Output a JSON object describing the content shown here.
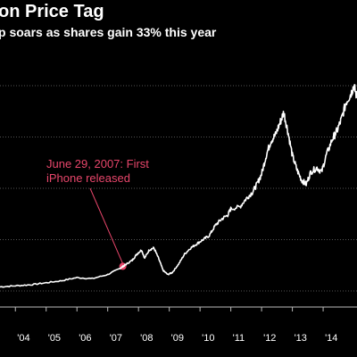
{
  "header": {
    "title": "on Price Tag",
    "subtitle": "p soars as shares gain 33% this year"
  },
  "colors": {
    "background": "#000000",
    "line": "#ffffff",
    "annotation": "#e8466b",
    "grid": "#555555"
  },
  "chart_data": {
    "type": "line",
    "title": "on Price Tag",
    "subtitle": "p soars as shares gain 33% this year",
    "xlabel": "",
    "ylabel": "",
    "grid": "horizontal dotted",
    "x_ticks": [
      "'04",
      "'05",
      "'06",
      "'07",
      "'08",
      "'09",
      "'10",
      "'11",
      "'12",
      "'13",
      "'14"
    ],
    "xlim": [
      2003.5,
      2015.1
    ],
    "ylim": [
      0,
      100
    ],
    "y_gridlines": [
      0,
      25,
      50,
      75,
      100
    ],
    "series": [
      {
        "values_note_x": "year",
        "x": [
          2003.5,
          2004.0,
          2004.5,
          2005.0,
          2005.5,
          2006.0,
          2006.5,
          2007.0,
          2007.4,
          2007.5,
          2007.6,
          2007.8,
          2007.95,
          2008.1,
          2008.2,
          2008.35,
          2008.5,
          2008.65,
          2008.8,
          2008.95,
          2009.1,
          2009.3,
          2009.5,
          2009.7,
          2009.9,
          2010.1,
          2010.3,
          2010.5,
          2010.7,
          2010.9,
          2011.0,
          2011.3,
          2011.5,
          2011.7,
          2011.85,
          2012.0,
          2012.15,
          2012.3,
          2012.45,
          2012.6,
          2012.72,
          2012.85,
          2013.0,
          2013.15,
          2013.3,
          2013.45,
          2013.6,
          2013.8,
          2013.95,
          2014.1,
          2014.3,
          2014.45,
          2014.6,
          2014.75,
          2014.9,
          2015.0,
          2015.1
        ],
        "y": [
          2,
          2.5,
          3,
          4,
          5,
          6.5,
          6,
          8,
          11,
          12,
          13,
          15,
          18,
          20,
          16,
          20,
          21,
          16,
          10,
          8,
          9,
          13,
          18,
          21,
          23,
          25,
          27,
          32,
          35,
          37,
          40,
          41,
          45,
          48,
          52,
          57,
          66,
          73,
          76,
          82,
          87,
          78,
          66,
          59,
          54,
          52,
          58,
          60,
          58,
          66,
          74,
          78,
          84,
          92,
          96,
          100,
          94
        ]
      }
    ],
    "annotations": [
      {
        "text_lines": [
          "June 29, 2007: First",
          "iPhone released"
        ],
        "x": 2007.49,
        "y": 12
      }
    ]
  }
}
